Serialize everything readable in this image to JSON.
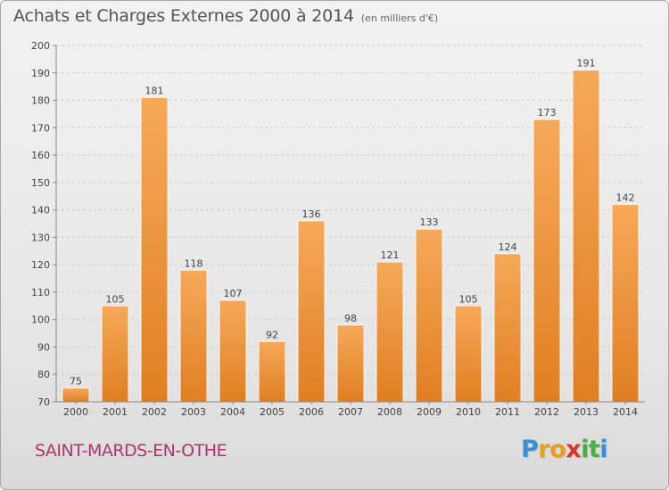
{
  "title": "Achats et Charges Externes 2000 à 2014",
  "subtitle": "(en milliers d'€)",
  "commune": "SAINT-MARDS-EN-OTHE",
  "logo": {
    "letters": [
      "P",
      "r",
      "o",
      "x",
      "i",
      "t",
      "i"
    ],
    "colors": [
      "#3a8fd8",
      "#e8a020",
      "#e8a020",
      "#d83a2a",
      "#46b040",
      "#46b040",
      "#3a8fd8"
    ]
  },
  "colors": {
    "bar_top": "#f6a95a",
    "bar_bottom": "#e07f22",
    "commune": "#b2346c"
  },
  "chart_data": {
    "type": "bar",
    "categories": [
      "2000",
      "2001",
      "2002",
      "2003",
      "2004",
      "2005",
      "2006",
      "2007",
      "2008",
      "2009",
      "2010",
      "2011",
      "2012",
      "2013",
      "2014"
    ],
    "values": [
      75,
      105,
      181,
      118,
      107,
      92,
      136,
      98,
      121,
      133,
      105,
      124,
      173,
      191,
      142
    ],
    "title": "Achats et Charges Externes 2000 à 2014",
    "xlabel": "",
    "ylabel": "",
    "ylim": [
      70,
      200
    ],
    "yticks": [
      70,
      80,
      90,
      100,
      110,
      120,
      130,
      140,
      150,
      160,
      170,
      180,
      190,
      200
    ],
    "grid": true,
    "legend": "none"
  }
}
